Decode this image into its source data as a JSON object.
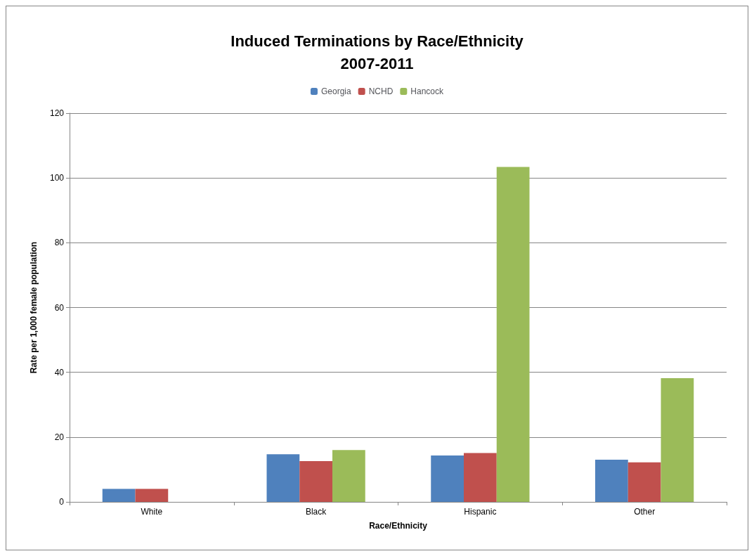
{
  "chart_data": {
    "type": "bar",
    "title": "Induced Terminations by Race/Ethnicity\n2007-2011",
    "xlabel": "Race/Ethnicity",
    "ylabel": "Rate per 1,000 female population",
    "categories": [
      "White",
      "Black",
      "Hispanic",
      "Other"
    ],
    "series": [
      {
        "name": "Georgia",
        "color": "#4f81bd",
        "values": [
          4.0,
          14.7,
          14.3,
          13.0
        ]
      },
      {
        "name": "NCHD",
        "color": "#c0504d",
        "values": [
          4.0,
          12.6,
          15.1,
          12.2
        ]
      },
      {
        "name": "Hancock",
        "color": "#9bbb59",
        "values": [
          null,
          16.0,
          103.4,
          38.2
        ]
      }
    ],
    "ylim": [
      0,
      120
    ],
    "yticks": [
      0,
      20,
      40,
      60,
      80,
      100,
      120
    ],
    "grid": "y",
    "legend": "top"
  }
}
